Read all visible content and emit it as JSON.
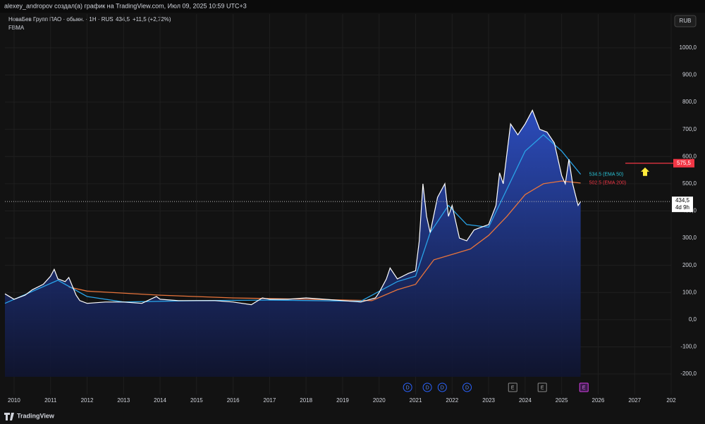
{
  "header": {
    "caption": "alexey_andropov создал(а) график на TradingView.com, Июл 09, 2025 10:59 UTC+3"
  },
  "chart_data": {
    "type": "area",
    "title": "НоваБев Групп ПАО · обыкн. · 1Н · RUS",
    "last_price": "434,5",
    "change": "+11,5 (+2,72%)",
    "subtitle": "FBMA",
    "currency": "RUB",
    "brand": "TradingView",
    "xlim": [
      2009.75,
      2028.0
    ],
    "ylim": [
      -275,
      1124
    ],
    "xticks": [
      2010,
      2011,
      2012,
      2013,
      2014,
      2015,
      2016,
      2017,
      2018,
      2019,
      2020,
      2021,
      2022,
      2023,
      2024,
      2025,
      2026,
      2027,
      {
        "value": 2028,
        "label": "202"
      }
    ],
    "yticks": [
      {
        "value": -200,
        "label": "-200,0"
      },
      {
        "value": -100,
        "label": "-100,0"
      },
      {
        "value": 0,
        "label": "0,0"
      },
      {
        "value": 100,
        "label": "100,0"
      },
      {
        "value": 200,
        "label": "200,0"
      },
      {
        "value": 300,
        "label": "300,0"
      },
      {
        "value": 400,
        "label": "400,0"
      },
      {
        "value": 500,
        "label": "500,0"
      },
      {
        "value": 600,
        "label": "600,0"
      },
      {
        "value": 700,
        "label": "700,0"
      },
      {
        "value": 800,
        "label": "800,0"
      },
      {
        "value": 900,
        "label": "900,0"
      },
      {
        "value": 1000,
        "label": "1000,0"
      }
    ],
    "grid": true,
    "series": [
      {
        "name": "Price",
        "color": "#ffffff",
        "x": [
          2009.75,
          2010.0,
          2010.3,
          2010.5,
          2010.8,
          2011.0,
          2011.1,
          2011.2,
          2011.4,
          2011.5,
          2011.7,
          2011.8,
          2012.0,
          2012.5,
          2013.0,
          2013.5,
          2013.9,
          2014.0,
          2014.5,
          2015.0,
          2015.5,
          2016.0,
          2016.5,
          2016.8,
          2017.0,
          2017.5,
          2018.0,
          2018.5,
          2019.0,
          2019.5,
          2019.9,
          2020.0,
          2020.2,
          2020.3,
          2020.5,
          2020.8,
          2021.0,
          2021.1,
          2021.2,
          2021.3,
          2021.4,
          2021.6,
          2021.8,
          2021.9,
          2022.0,
          2022.2,
          2022.4,
          2022.6,
          2022.8,
          2023.0,
          2023.2,
          2023.3,
          2023.4,
          2023.6,
          2023.8,
          2024.0,
          2024.2,
          2024.4,
          2024.6,
          2024.8,
          2025.0,
          2025.1,
          2025.2,
          2025.3,
          2025.45,
          2025.52
        ],
        "values": [
          95,
          75,
          90,
          110,
          130,
          160,
          185,
          150,
          140,
          155,
          90,
          70,
          60,
          65,
          65,
          60,
          85,
          75,
          70,
          70,
          70,
          65,
          55,
          80,
          75,
          75,
          80,
          75,
          70,
          65,
          80,
          100,
          150,
          190,
          150,
          170,
          180,
          290,
          500,
          380,
          320,
          450,
          500,
          380,
          420,
          300,
          290,
          330,
          340,
          350,
          420,
          540,
          500,
          720,
          680,
          720,
          770,
          700,
          690,
          650,
          530,
          500,
          590,
          500,
          420,
          434.5
        ]
      },
      {
        "name": "EMA 50",
        "color": "#29a3e8",
        "end_label": "534.5 (EMA 50)",
        "x": [
          2009.75,
          2011.2,
          2012.0,
          2013.0,
          2015.0,
          2017.0,
          2019.5,
          2020.5,
          2021.0,
          2021.4,
          2021.9,
          2022.4,
          2023.0,
          2023.5,
          2024.0,
          2024.5,
          2025.0,
          2025.52
        ],
        "values": [
          60,
          145,
          85,
          65,
          70,
          72,
          68,
          140,
          160,
          320,
          420,
          350,
          340,
          480,
          620,
          680,
          620,
          534.5
        ]
      },
      {
        "name": "EMA 200",
        "color": "#e8743b",
        "end_label": "502.5 (EMA 200)",
        "x": [
          2011.5,
          2012.0,
          2014.0,
          2016.0,
          2018.0,
          2019.8,
          2020.5,
          2021.0,
          2021.5,
          2022.0,
          2022.5,
          2023.0,
          2023.5,
          2024.0,
          2024.5,
          2025.0,
          2025.52
        ],
        "values": [
          120,
          105,
          90,
          80,
          75,
          70,
          110,
          130,
          220,
          240,
          260,
          310,
          380,
          460,
          500,
          510,
          502.5
        ]
      }
    ],
    "price_line": {
      "value": 434.5,
      "label": "434,5",
      "countdown": "4d 9h"
    },
    "alert_level": {
      "value": 575.5,
      "label": "575,5"
    },
    "events": [
      {
        "label": "D",
        "x": 2020.78
      },
      {
        "label": "D",
        "x": 2021.32
      },
      {
        "label": "D",
        "x": 2021.73
      },
      {
        "label": "D",
        "x": 2022.41
      },
      {
        "label": "E",
        "x": 2023.66
      },
      {
        "label": "E",
        "x": 2024.47
      },
      {
        "label": "E",
        "x": 2025.61
      }
    ]
  }
}
